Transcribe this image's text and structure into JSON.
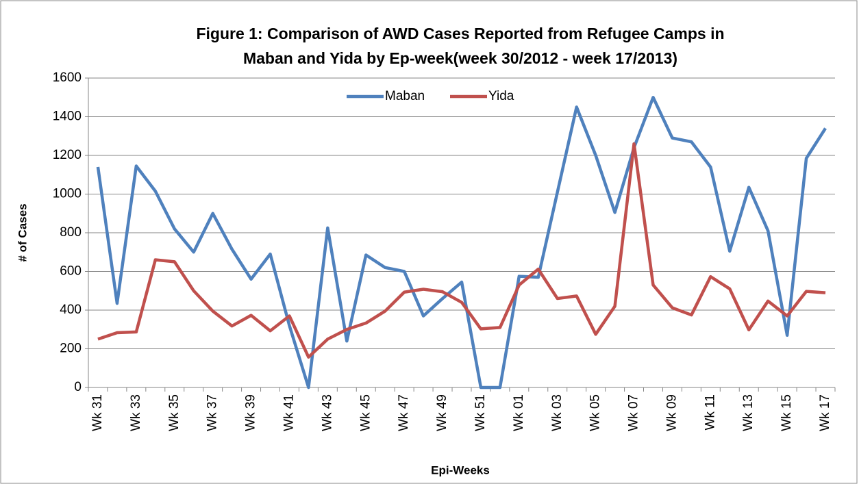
{
  "chart_data": {
    "type": "line",
    "title": [
      "Figure 1: Comparison of AWD Cases Reported from Refugee Camps in",
      "Maban and Yida by Ep-week(week 30/2012 - week 17/2013)"
    ],
    "x_label": "Epi-Weeks",
    "y_label": "# of Cases",
    "categories": [
      "Wk 31",
      null,
      "Wk 33",
      null,
      "Wk 35",
      null,
      "Wk 37",
      null,
      "Wk 39",
      null,
      "Wk 41",
      null,
      "Wk 43",
      null,
      "Wk 45",
      null,
      "Wk 47",
      null,
      "Wk 49",
      null,
      "Wk 51",
      null,
      "Wk 01",
      null,
      "Wk 03",
      null,
      "Wk 05",
      null,
      "Wk 07",
      null,
      "Wk 09",
      null,
      "Wk 11",
      null,
      "Wk 13",
      null,
      "Wk 15",
      null,
      "Wk 17"
    ],
    "series": [
      {
        "name": "Maban",
        "color": "#4f81bd",
        "values": [
          1140,
          435,
          1145,
          1015,
          820,
          700,
          900,
          715,
          560,
          690,
          320,
          0,
          825,
          240,
          685,
          620,
          600,
          370,
          460,
          545,
          0,
          0,
          575,
          570,
          1010,
          1450,
          1200,
          905,
          1240,
          1500,
          1290,
          1270,
          1140,
          705,
          1035,
          810,
          270,
          1185,
          1340
        ]
      },
      {
        "name": "Yida",
        "color": "#c0504d",
        "values": [
          250,
          283,
          287,
          660,
          650,
          500,
          395,
          318,
          373,
          293,
          370,
          157,
          250,
          300,
          333,
          395,
          493,
          508,
          495,
          440,
          303,
          310,
          530,
          612,
          460,
          473,
          275,
          420,
          1260,
          530,
          412,
          375,
          573,
          510,
          298,
          447,
          370,
          497,
          490
        ]
      }
    ],
    "ylim": [
      0,
      1600
    ],
    "yticks": [
      0,
      200,
      400,
      600,
      800,
      1000,
      1200,
      1400,
      1600
    ],
    "grid": true,
    "legend": "top"
  }
}
